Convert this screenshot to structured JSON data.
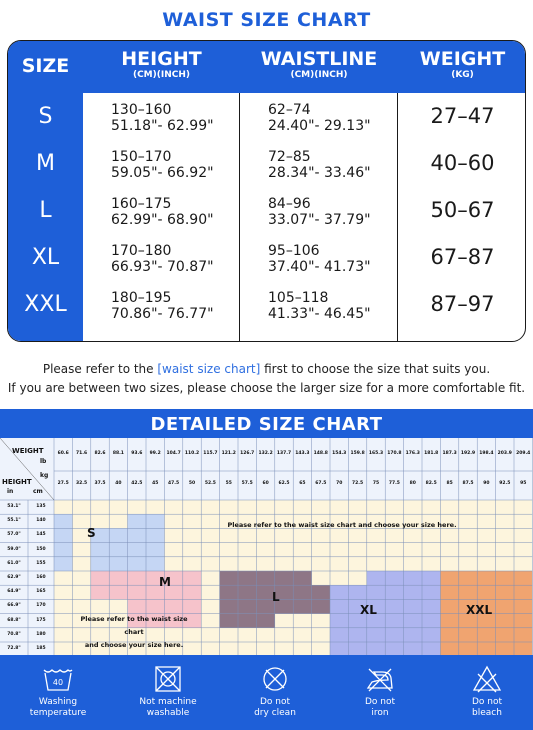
{
  "waist_chart": {
    "title": "WAIST SIZE CHART",
    "headers": {
      "size": "SIZE",
      "height": "HEIGHT",
      "height_unit": "(CM)(INCH)",
      "waist": "WAISTLINE",
      "waist_unit": "(CM)(INCH)",
      "weight": "WEIGHT",
      "weight_unit": "(KG)"
    },
    "rows": [
      {
        "size": "S",
        "height_cm": "130–160",
        "height_in": "51.18\"- 62.99\"",
        "waist_cm": "62–74",
        "waist_in": "24.40\"- 29.13\"",
        "weight": "27–47"
      },
      {
        "size": "M",
        "height_cm": "150–170",
        "height_in": "59.05\"- 66.92\"",
        "waist_cm": "72–85",
        "waist_in": "28.34\"- 33.46\"",
        "weight": "40–60"
      },
      {
        "size": "L",
        "height_cm": "160–175",
        "height_in": "62.99\"- 68.90\"",
        "waist_cm": "84–96",
        "waist_in": "33.07\"- 37.79\"",
        "weight": "50–67"
      },
      {
        "size": "XL",
        "height_cm": "170–180",
        "height_in": "66.93\"- 70.87\"",
        "waist_cm": "95–106",
        "waist_in": "37.40\"- 41.73\"",
        "weight": "67–87"
      },
      {
        "size": "XXL",
        "height_cm": "180–195",
        "height_in": "70.86\"- 76.77\"",
        "waist_cm": "105–118",
        "waist_in": "41.33\"- 46.45\"",
        "weight": "87–97"
      }
    ]
  },
  "note": {
    "line1_pre": "Please refer to the ",
    "line1_link": "[waist size chart]",
    "line1_post": " first to choose the size that suits you.",
    "line2": "If you are between two sizes, please choose the larger size for a more comfortable fit."
  },
  "detailed_chart": {
    "title": "DETAILED SIZE CHART",
    "weight_label": "WEIGHT",
    "lb_label": "lb",
    "kg_label": "kg",
    "height_label": "HEIGHT",
    "in_label": "in",
    "cm_label": "cm",
    "lb_values": [
      "60.6",
      "71.6",
      "82.6",
      "88.1",
      "93.6",
      "99.2",
      "104.7",
      "110.2",
      "115.7",
      "121.2",
      "126.7",
      "132.2",
      "137.7",
      "143.3",
      "148.8",
      "154.3",
      "159.8",
      "165.3",
      "170.8",
      "176.3",
      "181.8",
      "187.3",
      "192.9",
      "198.4",
      "203.9",
      "209.4"
    ],
    "kg_values": [
      "27.5",
      "32.5",
      "37.5",
      "40",
      "42.5",
      "45",
      "47.5",
      "50",
      "52.5",
      "55",
      "57.5",
      "60",
      "62.5",
      "65",
      "67.5",
      "70",
      "72.5",
      "75",
      "77.5",
      "80",
      "82.5",
      "85",
      "87.5",
      "90",
      "92.5",
      "95"
    ],
    "height_rows": [
      {
        "in": "53.1\"",
        "cm": "135"
      },
      {
        "in": "55.1\"",
        "cm": "140"
      },
      {
        "in": "57.0\"",
        "cm": "145"
      },
      {
        "in": "59.0\"",
        "cm": "150"
      },
      {
        "in": "61.0\"",
        "cm": "155"
      },
      {
        "in": "62.9\"",
        "cm": "160"
      },
      {
        "in": "64.9\"",
        "cm": "165"
      },
      {
        "in": "66.9\"",
        "cm": "170"
      },
      {
        "in": "68.8\"",
        "cm": "175"
      },
      {
        "in": "70.8\"",
        "cm": "180"
      },
      {
        "in": "72.8\"",
        "cm": "185"
      }
    ],
    "zones": [
      {
        "label": "S",
        "color": "#C5D6F4"
      },
      {
        "label": "M",
        "color": "#F6C3CB"
      },
      {
        "label": "L",
        "color": "#8E7686"
      },
      {
        "label": "XL",
        "color": "#AEB5EF"
      },
      {
        "label": "XXL",
        "color": "#F0A470"
      }
    ],
    "empty_color": "#FDF5DD",
    "message_top": "Please refer to the waist size chart and choose your size here.",
    "message_bottom_1": "Please refer to the waist size chart",
    "message_bottom_2": "and choose your size here."
  },
  "care": [
    {
      "icon": "washing-temperature-icon",
      "value": "40",
      "label1": "Washing",
      "label2": "temperature"
    },
    {
      "icon": "no-machine-wash-icon",
      "label1": "Not machine",
      "label2": "washable"
    },
    {
      "icon": "no-dry-clean-icon",
      "label1": "Do not",
      "label2": "dry clean"
    },
    {
      "icon": "no-iron-icon",
      "label1": "Do not",
      "label2": "iron"
    },
    {
      "icon": "no-bleach-icon",
      "label1": "Do not",
      "label2": "bleach"
    }
  ],
  "colors": {
    "brand_blue": "#1E5FD8"
  }
}
